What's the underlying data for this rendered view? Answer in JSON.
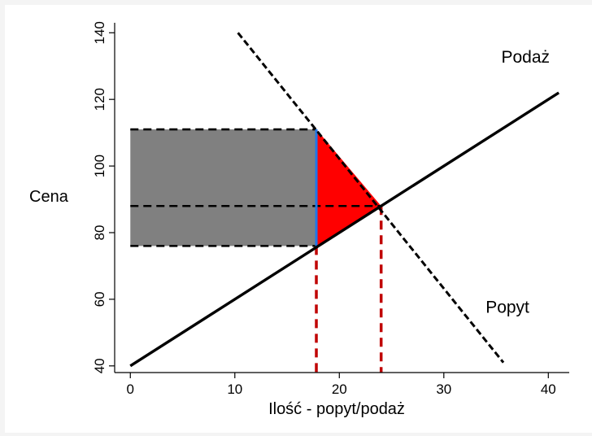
{
  "chart_data": {
    "type": "line",
    "title": "",
    "xlabel": "Ilość  - popyt/podaż",
    "ylabel": "Cena",
    "xlim": [
      -1.5,
      42
    ],
    "ylim": [
      38,
      143
    ],
    "x_ticks": [
      0,
      10,
      20,
      30,
      40
    ],
    "y_ticks": [
      40,
      60,
      80,
      100,
      120,
      140
    ],
    "x_tick_labels": [
      "0",
      "10",
      "20",
      "30",
      "40"
    ],
    "y_tick_labels": [
      "40",
      "60",
      "80",
      "100",
      "120",
      "140"
    ],
    "grid": false,
    "legend": "none",
    "series": [
      {
        "name": "Podaż",
        "style": "solid",
        "x": [
          0,
          41
        ],
        "y": [
          40,
          122
        ]
      },
      {
        "name": "Popyt",
        "style": "dashed",
        "x": [
          10.3,
          35.7
        ],
        "y": [
          140,
          41
        ]
      }
    ],
    "areas": [
      {
        "label": "gray-rectangle",
        "x": [
          0,
          17.8
        ],
        "y": [
          76,
          111
        ],
        "color": "#808080"
      },
      {
        "label": "red-triangle",
        "points": [
          [
            17.8,
            111
          ],
          [
            17.8,
            76
          ],
          [
            24,
            88
          ]
        ],
        "color": "#ff0000"
      }
    ],
    "reference_lines": [
      {
        "label": "price-high",
        "x": [
          0,
          17.8
        ],
        "y": [
          111,
          111
        ]
      },
      {
        "label": "price-equilibrium",
        "x": [
          0,
          24
        ],
        "y": [
          88,
          88
        ]
      },
      {
        "label": "price-low",
        "x": [
          0,
          17.8
        ],
        "y": [
          76,
          76
        ]
      },
      {
        "label": "quantity-restricted",
        "x": [
          17.8,
          17.8
        ],
        "y": [
          76,
          38
        ]
      },
      {
        "label": "quantity-equilibrium",
        "x": [
          24,
          24
        ],
        "y": [
          88,
          38
        ]
      },
      {
        "label": "blue-vertical",
        "x": [
          17.8,
          17.8
        ],
        "y": [
          111,
          76
        ]
      }
    ],
    "annotations": [
      {
        "text": "Podaż",
        "x": 35.5,
        "y": 131
      },
      {
        "text": "Popyt",
        "x": 34.0,
        "y": 56
      }
    ],
    "colors": {
      "gray": "#808080",
      "red": "#ff0000",
      "blue": "#1f77e8",
      "darkred": "#c00000",
      "black": "#000000"
    }
  }
}
